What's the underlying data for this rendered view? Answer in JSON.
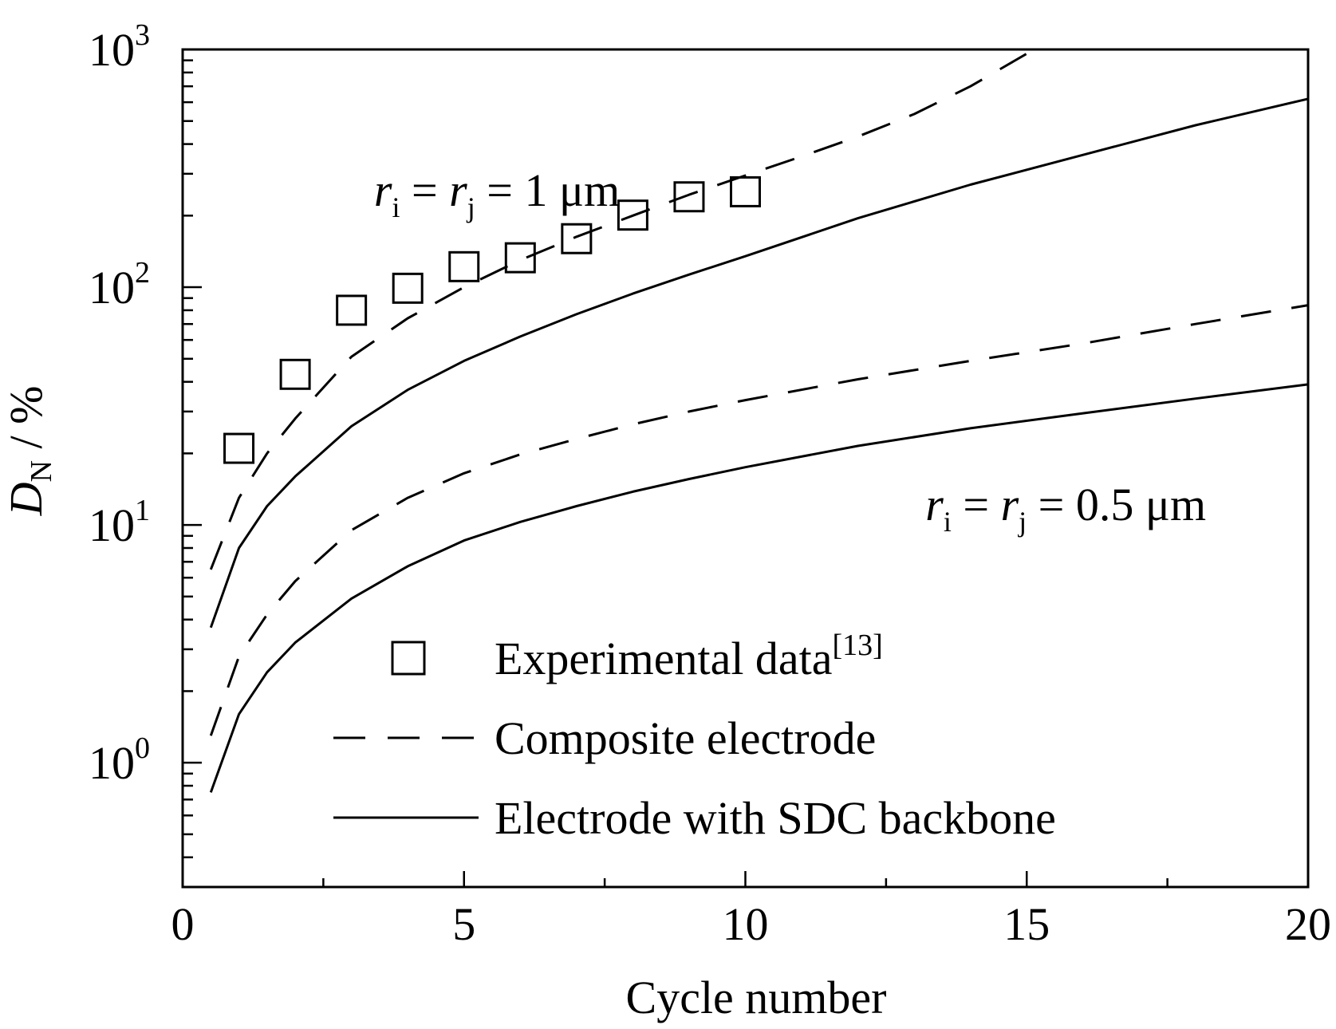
{
  "chart_data": {
    "type": "line",
    "xlabel": "Cycle number",
    "ylabel": {
      "main": "D",
      "sub": "N",
      "rest": " / %"
    },
    "xlim": [
      0,
      20
    ],
    "ylim": [
      0.3,
      1000
    ],
    "yscale": "log",
    "xticks": [
      0,
      5,
      10,
      15,
      20
    ],
    "xtick_labels": [
      "0",
      "5",
      "10",
      "15",
      "20"
    ],
    "yticks": [
      1,
      10,
      100,
      1000
    ],
    "ytick_labels": [
      {
        "base": "10",
        "exp": "0"
      },
      {
        "base": "10",
        "exp": "1"
      },
      {
        "base": "10",
        "exp": "2"
      },
      {
        "base": "10",
        "exp": "3"
      }
    ],
    "grid": false,
    "legend_position": "bottom-left",
    "legend": [
      {
        "label": "Experimental data",
        "sup": "[13]",
        "style": "square-marker"
      },
      {
        "label": "Composite electrode",
        "style": "dashed"
      },
      {
        "label": "Electrode with SDC backbone",
        "style": "solid"
      }
    ],
    "annotations": [
      {
        "r1": "r",
        "s1": "i",
        "eq1": " = ",
        "r2": "r",
        "s2": "j",
        "rest": " = 1 μm",
        "x": 3.4,
        "y": 220
      },
      {
        "r1": "r",
        "s1": "i",
        "eq1": " = ",
        "r2": "r",
        "s2": "j",
        "rest": " = 0.5 μm",
        "x": 13.2,
        "y": 10.5
      }
    ],
    "series": [
      {
        "style": "square-marker",
        "x": [
          1,
          2,
          3,
          4,
          5,
          6,
          7,
          8,
          9,
          10
        ],
        "y": [
          21,
          43,
          80,
          99,
          122,
          133,
          160,
          201,
          240,
          252
        ]
      },
      {
        "style": "dashed",
        "x": [
          0.5,
          1,
          1.5,
          2,
          3,
          4,
          5,
          6,
          7,
          8,
          9,
          10,
          11,
          12,
          13,
          14,
          15
        ],
        "y": [
          6.5,
          13,
          20,
          28,
          51,
          74,
          100,
          130,
          163,
          200,
          245,
          295,
          355,
          430,
          535,
          700,
          960
        ]
      },
      {
        "style": "solid",
        "x": [
          0.5,
          1,
          1.5,
          2,
          3,
          4,
          5,
          6,
          7,
          8,
          9,
          10,
          12,
          14,
          16,
          18,
          20
        ],
        "y": [
          3.7,
          8,
          12,
          16,
          26,
          37,
          49,
          62,
          77,
          94,
          113,
          135,
          195,
          270,
          360,
          480,
          620
        ]
      },
      {
        "style": "dashed",
        "x": [
          0.5,
          1,
          1.5,
          2,
          3,
          4,
          5,
          6,
          7,
          8,
          9,
          10,
          12,
          14,
          16,
          18,
          20
        ],
        "y": [
          1.3,
          2.8,
          4.2,
          5.8,
          9.5,
          13,
          16.5,
          19.8,
          23,
          26.5,
          30,
          33.5,
          41,
          49,
          58,
          70,
          84
        ]
      },
      {
        "style": "solid",
        "x": [
          0.5,
          1,
          1.5,
          2,
          3,
          4,
          5,
          6,
          7,
          8,
          9,
          10,
          12,
          14,
          16,
          18,
          20
        ],
        "y": [
          0.75,
          1.6,
          2.4,
          3.2,
          4.9,
          6.7,
          8.6,
          10.3,
          12,
          13.8,
          15.6,
          17.5,
          21.5,
          25.5,
          29.5,
          34,
          39
        ]
      }
    ]
  }
}
